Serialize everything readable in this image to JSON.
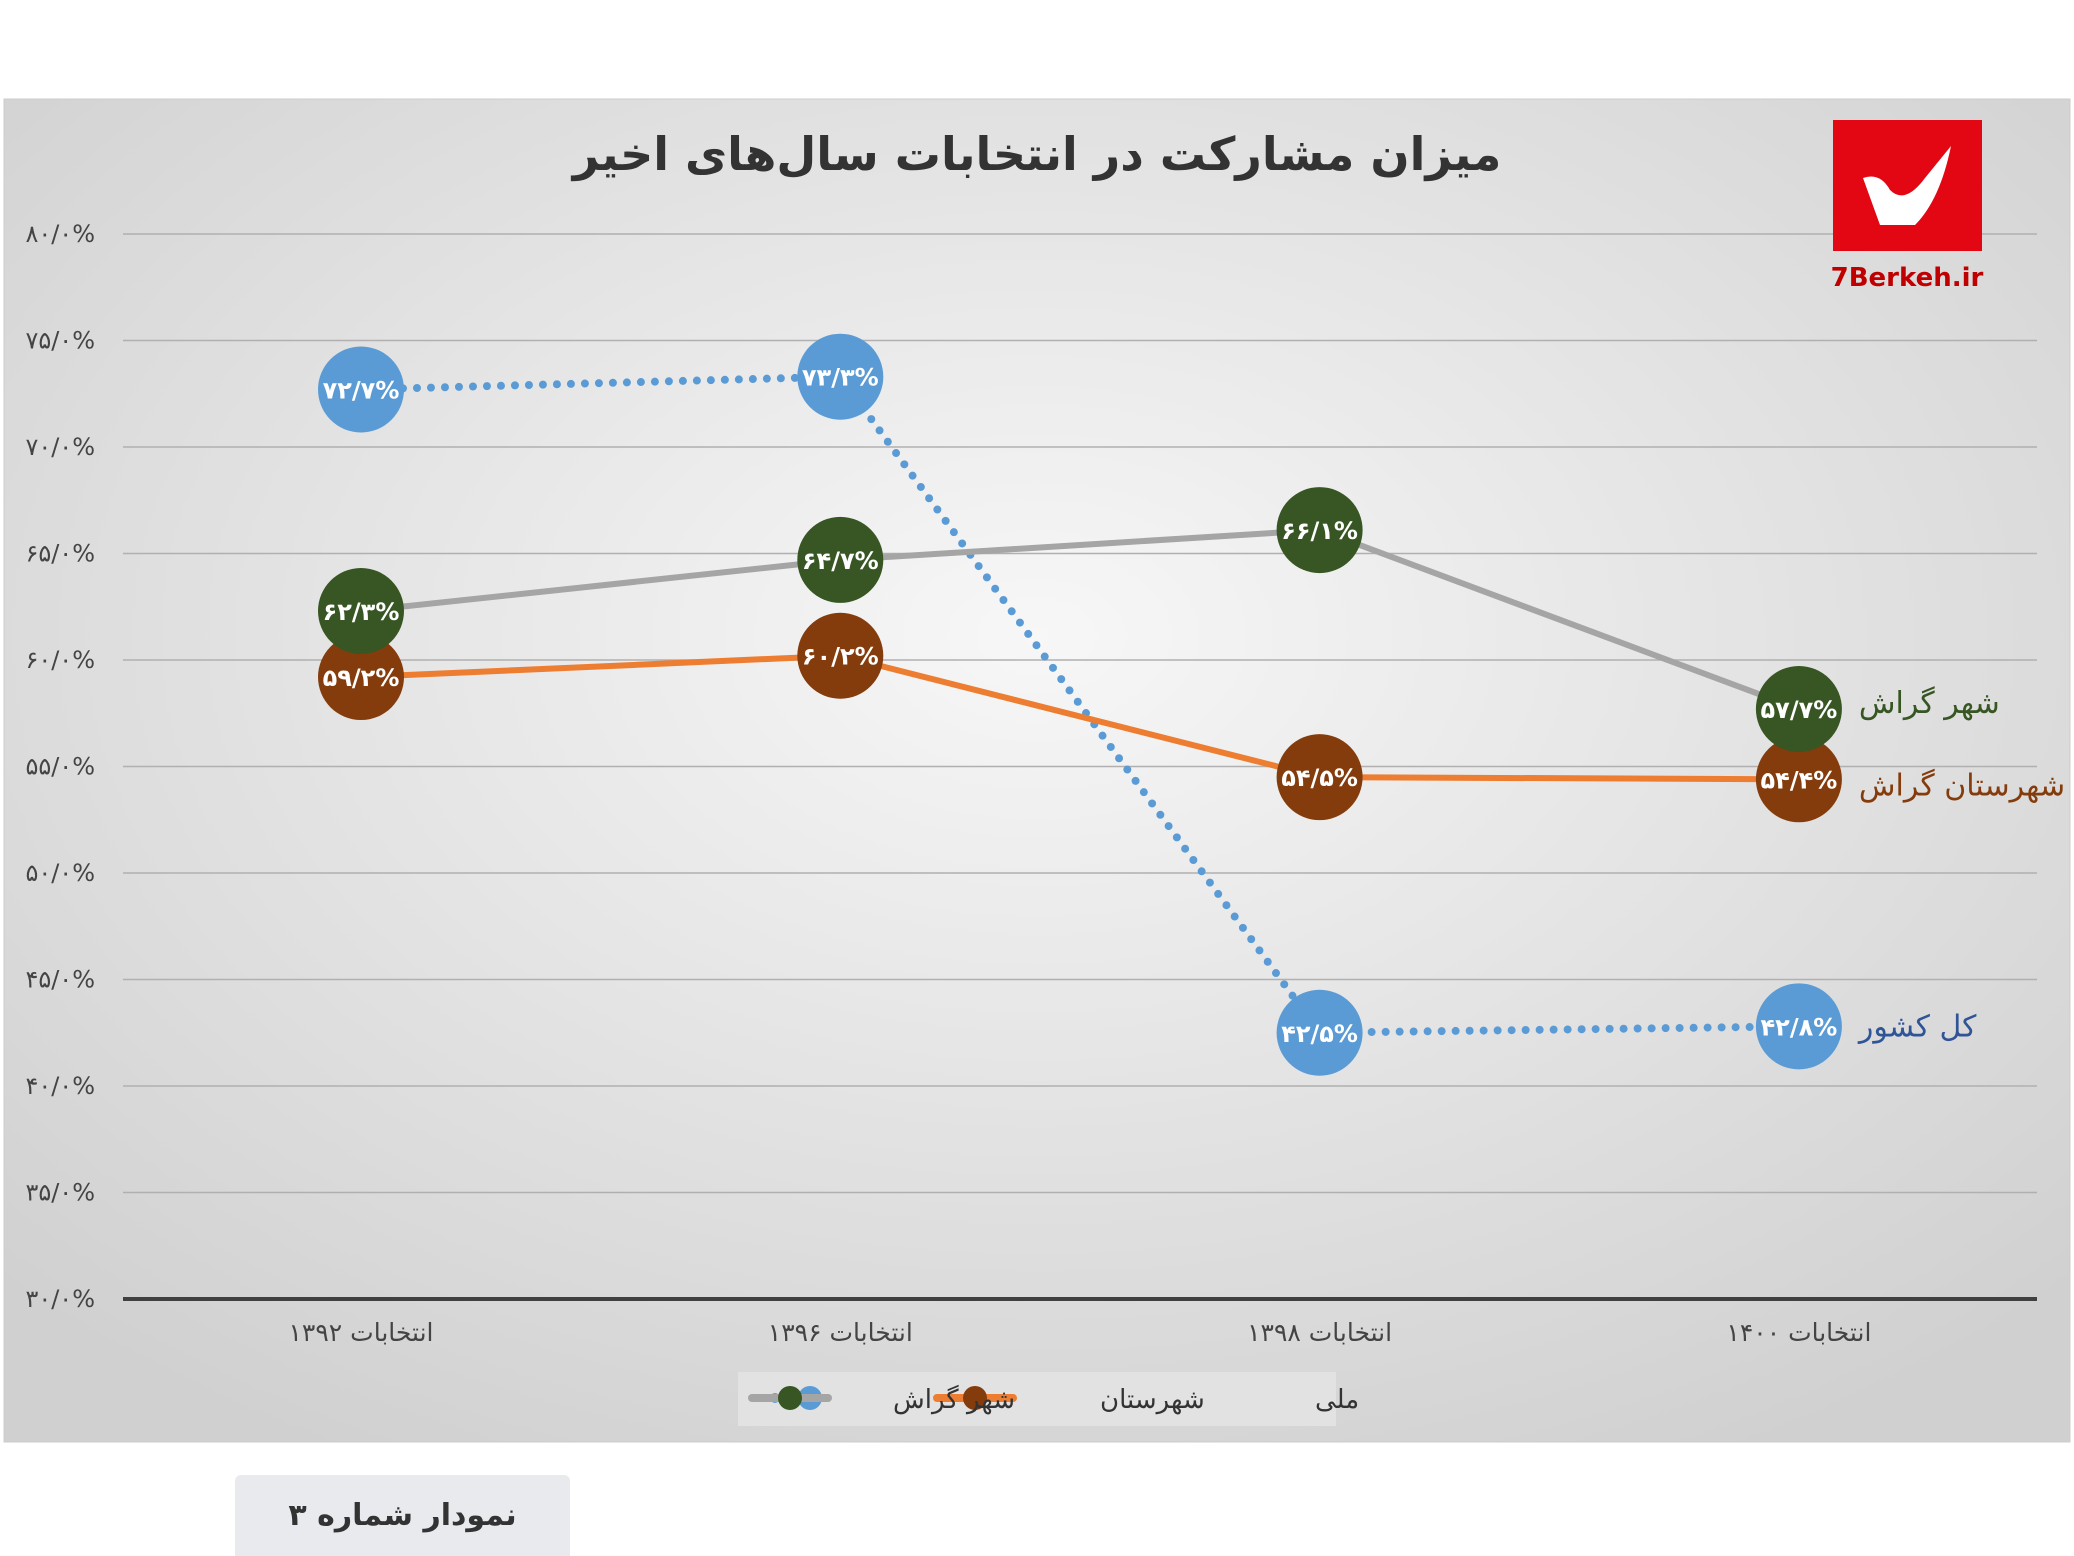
{
  "chart_data": {
    "type": "line",
    "title": "میزان مشارکت در انتخابات سال‌های اخیر",
    "categories": [
      "انتخابات ۱۳۹۲",
      "انتخابات ۱۳۹۶",
      "انتخابات ۱۳۹۸",
      "انتخابات ۱۴۰۰"
    ],
    "ylim": [
      30,
      80
    ],
    "yticks": [
      30,
      35,
      40,
      45,
      50,
      55,
      60,
      65,
      70,
      75,
      80
    ],
    "ytick_labels": [
      "۳۰/۰%",
      "۳۵/۰%",
      "۴۰/۰%",
      "۴۵/۰%",
      "۵۰/۰%",
      "۵۵/۰%",
      "۶۰/۰%",
      "۶۵/۰%",
      "۷۰/۰%",
      "۷۵/۰%",
      "۸۰/۰%"
    ],
    "grid": true,
    "legend_position": "bottom",
    "series": [
      {
        "name": "ملی",
        "end_label": "کل کشور",
        "values": [
          72.7,
          73.3,
          42.5,
          42.8
        ],
        "labels": [
          "۷۲/۷%",
          "۷۳/۳%",
          "۴۲/۵%",
          "۴۲/۸%"
        ],
        "line_color": "#5b9bd5",
        "marker_color": "#5b9bd5",
        "label_color": "#2f5597",
        "style": "dotted"
      },
      {
        "name": "شهرستان",
        "end_label": "شهرستان گراش",
        "values": [
          59.2,
          60.2,
          54.5,
          54.4
        ],
        "labels": [
          "۵۹/۲%",
          "۶۰/۲%",
          "۵۴/۵%",
          "۵۴/۴%"
        ],
        "line_color": "#ed7d31",
        "marker_color": "#843c0c",
        "label_color": "#843c0c",
        "style": "solid"
      },
      {
        "name": "شهر گراش",
        "end_label": "شهر گراش",
        "values": [
          62.3,
          64.7,
          66.1,
          57.7
        ],
        "labels": [
          "۶۲/۳%",
          "۶۴/۷%",
          "۶۶/۱%",
          "۵۷/۷%"
        ],
        "line_color": "#a5a5a5",
        "marker_color": "#375623",
        "label_color": "#375623",
        "style": "solid"
      }
    ]
  },
  "logo": {
    "text": "7Berkeh.ir",
    "color": "#e30613"
  },
  "caption": "نمودار شماره ۳"
}
